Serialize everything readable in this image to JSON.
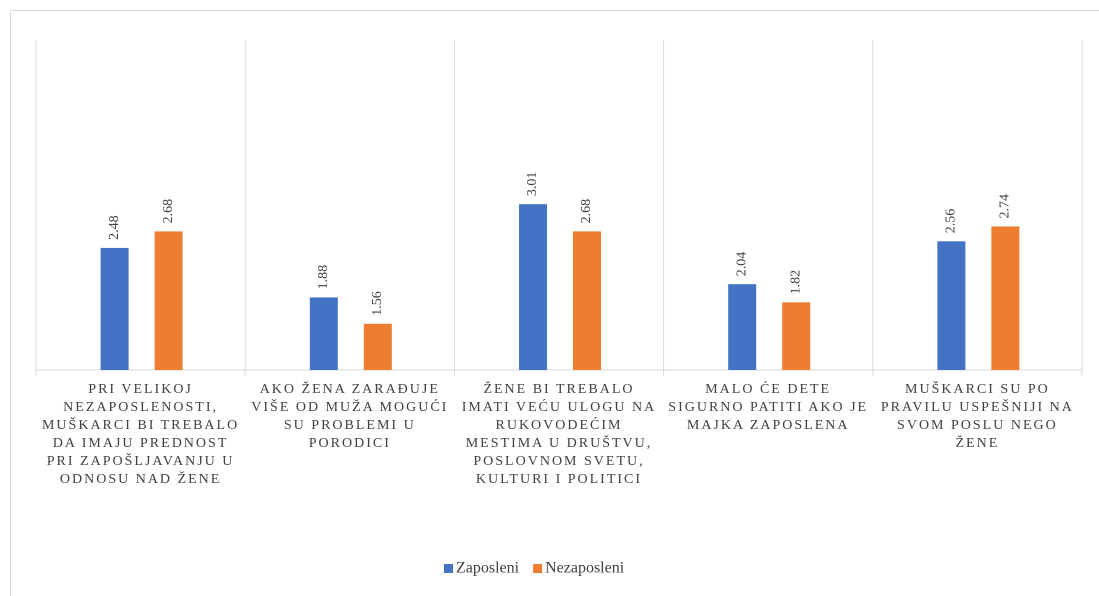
{
  "chart_data": {
    "type": "bar",
    "categories": [
      "PRI VELIKOJ NEZAPOSLENOSTI, MUŠKARCI BI TREBALO DA IMAJU PREDNOST PRI ZAPOŠLJAVANJU U ODNOSU NAD ŽENE",
      "AKO ŽENA ZARAĐUJE VIŠE OD MUŽA MOGUĆI SU PROBLEMI U PORODICI",
      "ŽENE BI TREBALO IMATI VEĆU ULOGU NA RUKOVODEĆIM MESTIMA U DRUŠTVU, POSLOVNOM SVETU, KULTURI I POLITICI",
      "MALO ĆE DETE SIGURNO PATITI AKO JE MAJKA ZAPOSLENA",
      "MUŠKARCI SU PO PRAVILU USPEŠNIJI NA SVOM POSLU NEGO ŽENE"
    ],
    "series": [
      {
        "name": "Zaposleni",
        "color": "#4472c4",
        "values": [
          2.48,
          1.88,
          3.01,
          2.04,
          2.56
        ]
      },
      {
        "name": "Nezaposleni",
        "color": "#ed7d31",
        "values": [
          2.68,
          1.56,
          2.68,
          1.82,
          2.74
        ]
      }
    ],
    "ylim": [
      1,
      5
    ],
    "legend": "bottom",
    "grid": false
  }
}
